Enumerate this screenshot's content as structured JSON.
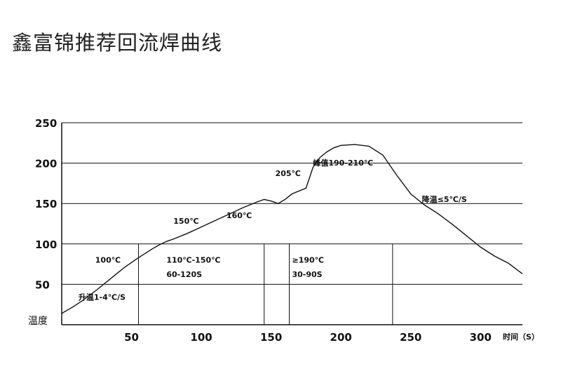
{
  "page": {
    "title": "鑫富锦推荐回流焊曲线"
  },
  "chart_data": {
    "type": "line",
    "xlabel": "时间（S）",
    "ylabel": "温度",
    "xlim": [
      0,
      330
    ],
    "ylim": [
      0,
      250
    ],
    "x_ticks": [
      "50",
      "100",
      "150",
      "200",
      "250",
      "300"
    ],
    "x_tick_values": [
      50,
      100,
      150,
      200,
      250,
      300
    ],
    "y_ticks": [
      "50",
      "100",
      "150",
      "200",
      "250"
    ],
    "y_tick_values": [
      50,
      100,
      150,
      200,
      250
    ],
    "grid_y": true,
    "series": [
      {
        "x": [
          0,
          8,
          15,
          25,
          35,
          45,
          55,
          65,
          70,
          75,
          80,
          90,
          100,
          110,
          120,
          130,
          140,
          145,
          150,
          155,
          160,
          165,
          175,
          180,
          185,
          190,
          195,
          200,
          210,
          220,
          230,
          240,
          250,
          260,
          270,
          280,
          290,
          300,
          310,
          320,
          330
        ],
        "y": [
          14,
          22,
          30,
          43,
          57,
          71,
          83,
          94,
          99,
          103,
          106,
          113,
          121,
          129,
          137,
          145,
          152,
          155,
          153,
          150,
          155,
          162,
          169,
          195,
          207,
          214,
          219,
          222,
          223,
          221,
          210,
          185,
          162,
          148,
          137,
          124,
          110,
          96,
          85,
          76,
          63
        ]
      }
    ],
    "vlines": [
      55,
      145,
      163,
      237
    ],
    "annotations": [
      {
        "text": "升温1-4℃/S",
        "x": 12,
        "y": 31
      },
      {
        "text": "100℃",
        "x": 24,
        "y": 77
      },
      {
        "text": "110℃-150℃",
        "x": 75,
        "y": 77
      },
      {
        "text": "60-120S",
        "x": 75,
        "y": 59
      },
      {
        "text": "150℃",
        "x": 80,
        "y": 125
      },
      {
        "text": "160℃",
        "x": 118,
        "y": 132
      },
      {
        "text": "205℃",
        "x": 153,
        "y": 184
      },
      {
        "text": "峰值190-210℃",
        "x": 180,
        "y": 197
      },
      {
        "text": "≥190℃",
        "x": 165,
        "y": 77
      },
      {
        "text": "30-90S",
        "x": 165,
        "y": 59
      },
      {
        "text": "降温≤5℃/S",
        "x": 258,
        "y": 152
      }
    ]
  }
}
